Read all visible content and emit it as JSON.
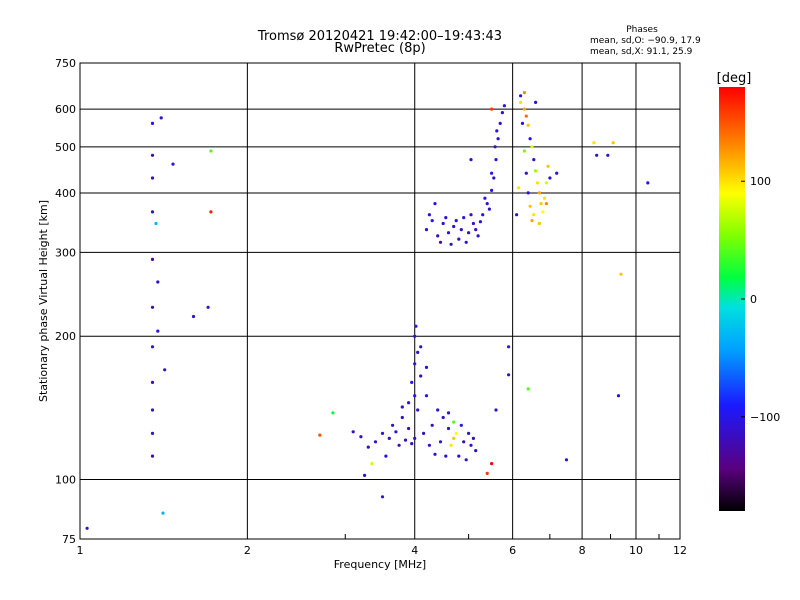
{
  "header": {
    "title_line1": "Tromsø 20120421 19:42:00–19:43:43",
    "title_line2": "RwPretec (8p)",
    "stats_title": "Phases",
    "stats_line1": "mean, sd,O: −90.9, 17.9",
    "stats_line2": "mean, sd,X:  91.1, 25.9"
  },
  "chart_data": {
    "type": "scatter",
    "title": "Tromsø 20120421 19:42:00–19:43:43",
    "subtitle": "RwPretec (8p)",
    "xlabel": "Frequency [MHz]",
    "ylabel": "Stationary phase Virtual Height [km]",
    "xscale": "log",
    "yscale": "log",
    "xlim": [
      1,
      12
    ],
    "ylim": [
      75,
      750
    ],
    "x_ticks": [
      1,
      2,
      4,
      6,
      8,
      10,
      12
    ],
    "y_ticks": [
      75,
      100,
      200,
      300,
      400,
      500,
      600,
      750
    ],
    "grid": true,
    "colorbar": {
      "label": "[deg]",
      "range": [
        -180,
        180
      ],
      "ticks": [
        100,
        0,
        -100
      ]
    },
    "series": [
      {
        "points": [
          [
            1.35,
            560,
            -110
          ],
          [
            1.4,
            575,
            -105
          ],
          [
            1.35,
            480,
            -120
          ],
          [
            1.35,
            430,
            -115
          ],
          [
            1.35,
            365,
            -110
          ],
          [
            1.37,
            345,
            -30
          ],
          [
            1.35,
            290,
            -130
          ],
          [
            1.38,
            260,
            -110
          ],
          [
            1.35,
            230,
            -120
          ],
          [
            1.38,
            205,
            -100
          ],
          [
            1.35,
            190,
            -110
          ],
          [
            1.35,
            160,
            -120
          ],
          [
            1.35,
            140,
            -110
          ],
          [
            1.35,
            125,
            -100
          ],
          [
            1.35,
            112,
            -120
          ],
          [
            1.42,
            170,
            -110
          ],
          [
            1.47,
            460,
            -100
          ],
          [
            1.7,
            230,
            -110
          ],
          [
            1.72,
            365,
            170
          ],
          [
            1.72,
            490,
            40
          ],
          [
            1.6,
            220,
            -100
          ],
          [
            1.41,
            85,
            -30
          ],
          [
            1.03,
            79,
            -110
          ],
          [
            3.3,
            117,
            -120
          ],
          [
            3.4,
            120,
            -110
          ],
          [
            3.5,
            125,
            -105
          ],
          [
            3.6,
            122,
            -120
          ],
          [
            3.65,
            130,
            -110
          ],
          [
            3.7,
            126,
            -100
          ],
          [
            3.75,
            118,
            -120
          ],
          [
            3.8,
            135,
            -110
          ],
          [
            3.85,
            121,
            -115
          ],
          [
            3.9,
            145,
            -110
          ],
          [
            3.9,
            128,
            -120
          ],
          [
            3.95,
            160,
            -100
          ],
          [
            3.95,
            119,
            -110
          ],
          [
            4.0,
            175,
            -110
          ],
          [
            4.0,
            122,
            -120
          ],
          [
            4.0,
            200,
            -105
          ],
          [
            4.02,
            210,
            -100
          ],
          [
            4.05,
            185,
            -110
          ],
          [
            4.05,
            140,
            -115
          ],
          [
            4.1,
            165,
            -120
          ],
          [
            4.15,
            125,
            -110
          ],
          [
            4.2,
            150,
            -100
          ],
          [
            4.25,
            118,
            -110
          ],
          [
            4.3,
            130,
            -120
          ],
          [
            4.35,
            113,
            -105
          ],
          [
            4.4,
            140,
            -110
          ],
          [
            4.45,
            120,
            -100
          ],
          [
            4.5,
            135,
            -110
          ],
          [
            4.55,
            112,
            -110
          ],
          [
            4.6,
            128,
            -100
          ],
          [
            4.65,
            118,
            100
          ],
          [
            4.7,
            122,
            110
          ],
          [
            4.75,
            125,
            90
          ],
          [
            4.8,
            112,
            -110
          ],
          [
            4.85,
            130,
            -100
          ],
          [
            4.9,
            120,
            -120
          ],
          [
            4.95,
            110,
            -110
          ],
          [
            5.0,
            125,
            -105
          ],
          [
            5.05,
            118,
            -110
          ],
          [
            5.1,
            122,
            -115
          ],
          [
            3.2,
            123,
            -110
          ],
          [
            3.1,
            126,
            -120
          ],
          [
            5.15,
            115,
            -110
          ],
          [
            3.55,
            112,
            -110
          ],
          [
            4.1,
            190,
            -110
          ],
          [
            4.0,
            150,
            -100
          ],
          [
            4.2,
            172,
            -110
          ],
          [
            3.8,
            142,
            -110
          ],
          [
            4.6,
            138,
            -100
          ],
          [
            4.7,
            132,
            40
          ],
          [
            3.35,
            108,
            80
          ],
          [
            3.5,
            92,
            -100
          ],
          [
            2.7,
            124,
            150
          ],
          [
            2.85,
            138,
            20
          ],
          [
            3.25,
            102,
            -110
          ],
          [
            5.4,
            103,
            160
          ],
          [
            5.5,
            108,
            180
          ],
          [
            5.6,
            140,
            -110
          ],
          [
            5.9,
            166,
            -110
          ],
          [
            5.9,
            190,
            -100
          ],
          [
            4.2,
            335,
            -110
          ],
          [
            4.3,
            350,
            -100
          ],
          [
            4.4,
            325,
            -120
          ],
          [
            4.5,
            345,
            -110
          ],
          [
            4.6,
            330,
            -105
          ],
          [
            4.7,
            340,
            -110
          ],
          [
            4.8,
            320,
            -120
          ],
          [
            4.9,
            355,
            -100
          ],
          [
            5.0,
            330,
            -110
          ],
          [
            5.1,
            345,
            -115
          ],
          [
            5.2,
            325,
            -110
          ],
          [
            5.3,
            360,
            -100
          ],
          [
            5.4,
            380,
            -110
          ],
          [
            5.5,
            405,
            -105
          ],
          [
            5.55,
            430,
            -110
          ],
          [
            5.6,
            470,
            -100
          ],
          [
            5.65,
            520,
            -110
          ],
          [
            5.7,
            560,
            -115
          ],
          [
            5.75,
            590,
            -110
          ],
          [
            5.8,
            610,
            -100
          ],
          [
            4.25,
            360,
            -110
          ],
          [
            4.35,
            380,
            -100
          ],
          [
            4.45,
            315,
            -120
          ],
          [
            4.55,
            355,
            -110
          ],
          [
            4.65,
            312,
            -110
          ],
          [
            4.75,
            350,
            -100
          ],
          [
            4.85,
            335,
            -110
          ],
          [
            4.95,
            315,
            -105
          ],
          [
            5.05,
            360,
            -110
          ],
          [
            5.15,
            335,
            -115
          ],
          [
            5.25,
            348,
            -110
          ],
          [
            5.35,
            390,
            -100
          ],
          [
            5.45,
            370,
            -110
          ],
          [
            5.5,
            440,
            -100
          ],
          [
            5.58,
            500,
            -110
          ],
          [
            5.62,
            540,
            -105
          ],
          [
            5.05,
            470,
            -110
          ],
          [
            5.5,
            600,
            160
          ],
          [
            6.2,
            620,
            100
          ],
          [
            6.3,
            600,
            120
          ],
          [
            6.35,
            580,
            140
          ],
          [
            6.4,
            555,
            110
          ],
          [
            6.45,
            520,
            -100
          ],
          [
            6.5,
            500,
            80
          ],
          [
            6.55,
            470,
            -110
          ],
          [
            6.6,
            445,
            60
          ],
          [
            6.65,
            420,
            100
          ],
          [
            6.7,
            400,
            120
          ],
          [
            6.75,
            380,
            110
          ],
          [
            6.8,
            365,
            90
          ],
          [
            6.85,
            390,
            100
          ],
          [
            6.9,
            420,
            80
          ],
          [
            6.95,
            455,
            110
          ],
          [
            7.0,
            430,
            -110
          ],
          [
            6.25,
            560,
            -110
          ],
          [
            6.3,
            490,
            50
          ],
          [
            6.35,
            440,
            -105
          ],
          [
            6.4,
            400,
            -110
          ],
          [
            6.45,
            375,
            110
          ],
          [
            6.5,
            350,
            120
          ],
          [
            6.55,
            360,
            100
          ],
          [
            6.6,
            620,
            -110
          ],
          [
            6.2,
            640,
            -100
          ],
          [
            6.3,
            650,
            130
          ],
          [
            6.1,
            360,
            -110
          ],
          [
            6.15,
            410,
            100
          ],
          [
            6.9,
            380,
            130
          ],
          [
            6.7,
            345,
            110
          ],
          [
            7.2,
            440,
            -110
          ],
          [
            7.5,
            110,
            -110
          ],
          [
            8.4,
            510,
            100
          ],
          [
            8.5,
            480,
            -110
          ],
          [
            8.9,
            480,
            -110
          ],
          [
            9.1,
            510,
            110
          ],
          [
            9.4,
            270,
            110
          ],
          [
            9.3,
            150,
            -110
          ],
          [
            10.5,
            420,
            -100
          ],
          [
            6.4,
            155,
            40
          ]
        ]
      }
    ]
  }
}
